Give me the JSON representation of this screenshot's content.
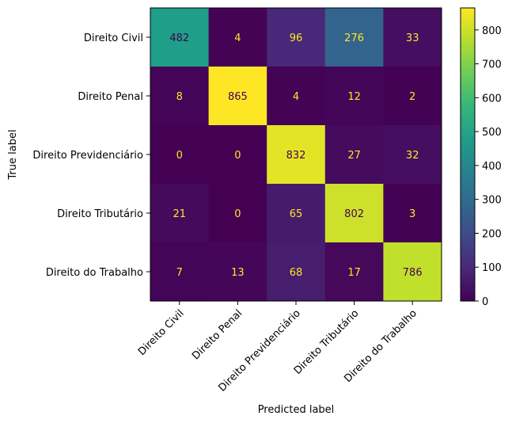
{
  "chart_data": {
    "type": "heatmap",
    "colormap": "viridis",
    "xlabel": "Predicted label",
    "ylabel": "True label",
    "x_categories": [
      "Direito Civil",
      "Direito Penal",
      "Direito Previdenciário",
      "Direito Tributário",
      "Direito do Trabalho"
    ],
    "y_categories": [
      "Direito Civil",
      "Direito Penal",
      "Direito Previdenciário",
      "Direito Tributário",
      "Direito do Trabalho"
    ],
    "matrix": [
      [
        482,
        4,
        96,
        276,
        33
      ],
      [
        8,
        865,
        4,
        12,
        2
      ],
      [
        0,
        0,
        832,
        27,
        32
      ],
      [
        21,
        0,
        65,
        802,
        3
      ],
      [
        7,
        13,
        68,
        17,
        786
      ]
    ],
    "colorbar": {
      "range": [
        0,
        865
      ],
      "ticks": [
        "0",
        "100",
        "200",
        "300",
        "400",
        "500",
        "600",
        "700",
        "800"
      ]
    },
    "grid": false
  }
}
